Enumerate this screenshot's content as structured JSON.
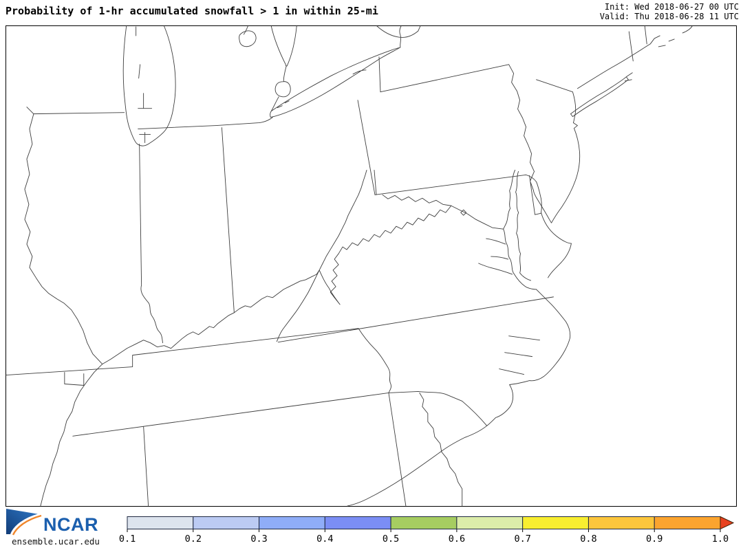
{
  "header": {
    "title": "Probability of 1-hr accumulated snowfall > 1 in within 25-mi",
    "init_line": "Init: Wed 2018-06-27 00 UTC",
    "valid_line": "Valid: Thu 2018-06-28 11 UTC"
  },
  "branding": {
    "logo_text": "NCAR",
    "site": "ensemble.ucar.edu",
    "logo_blue": "#1b5fae",
    "logo_blue_dark": "#16457f",
    "logo_orange": "#f0862b"
  },
  "map": {
    "line_color": "#3d3d3d",
    "frame_color": "#000000",
    "background": "#ffffff"
  },
  "colorbar": {
    "labels": [
      "0.1",
      "0.2",
      "0.3",
      "0.4",
      "0.5",
      "0.6",
      "0.7",
      "0.8",
      "0.9",
      "1.0"
    ],
    "segment_colors": [
      "#dde4ee",
      "#bccbf3",
      "#8fadf8",
      "#7b8ef5",
      "#a6cd61",
      "#dcedaa",
      "#f8ee30",
      "#fcc63c",
      "#fba42f"
    ],
    "edge_color": "#1e2840",
    "arrow_color": "#e8421f",
    "arrow_edge_color": "#402008",
    "tick_color": "#000000",
    "label_color": "#000000"
  }
}
